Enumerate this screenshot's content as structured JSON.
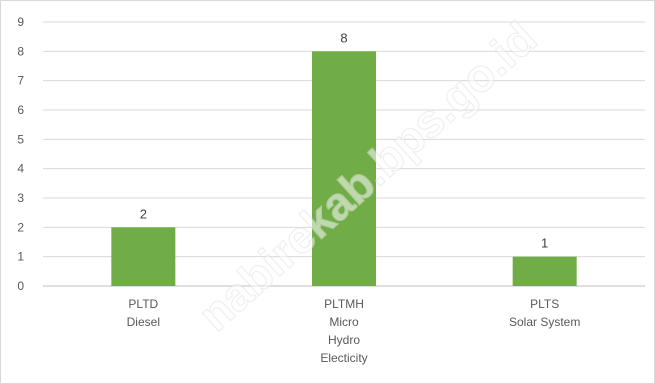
{
  "chart_data": {
    "type": "bar",
    "categories": [
      [
        "PLTD",
        "Diesel"
      ],
      [
        "PLTMH",
        "Micro",
        "Hydro",
        "Electicity"
      ],
      [
        "PLTS",
        "Solar System"
      ]
    ],
    "values": [
      2,
      8,
      1
    ],
    "ylim": [
      0,
      9
    ],
    "yticks": [
      0,
      1,
      2,
      3,
      4,
      5,
      6,
      7,
      8,
      9
    ],
    "grid": true,
    "legend": "none",
    "bar_color": "#70ad47",
    "data_labels": true
  },
  "watermark": "nabirekab.bps.go.id"
}
